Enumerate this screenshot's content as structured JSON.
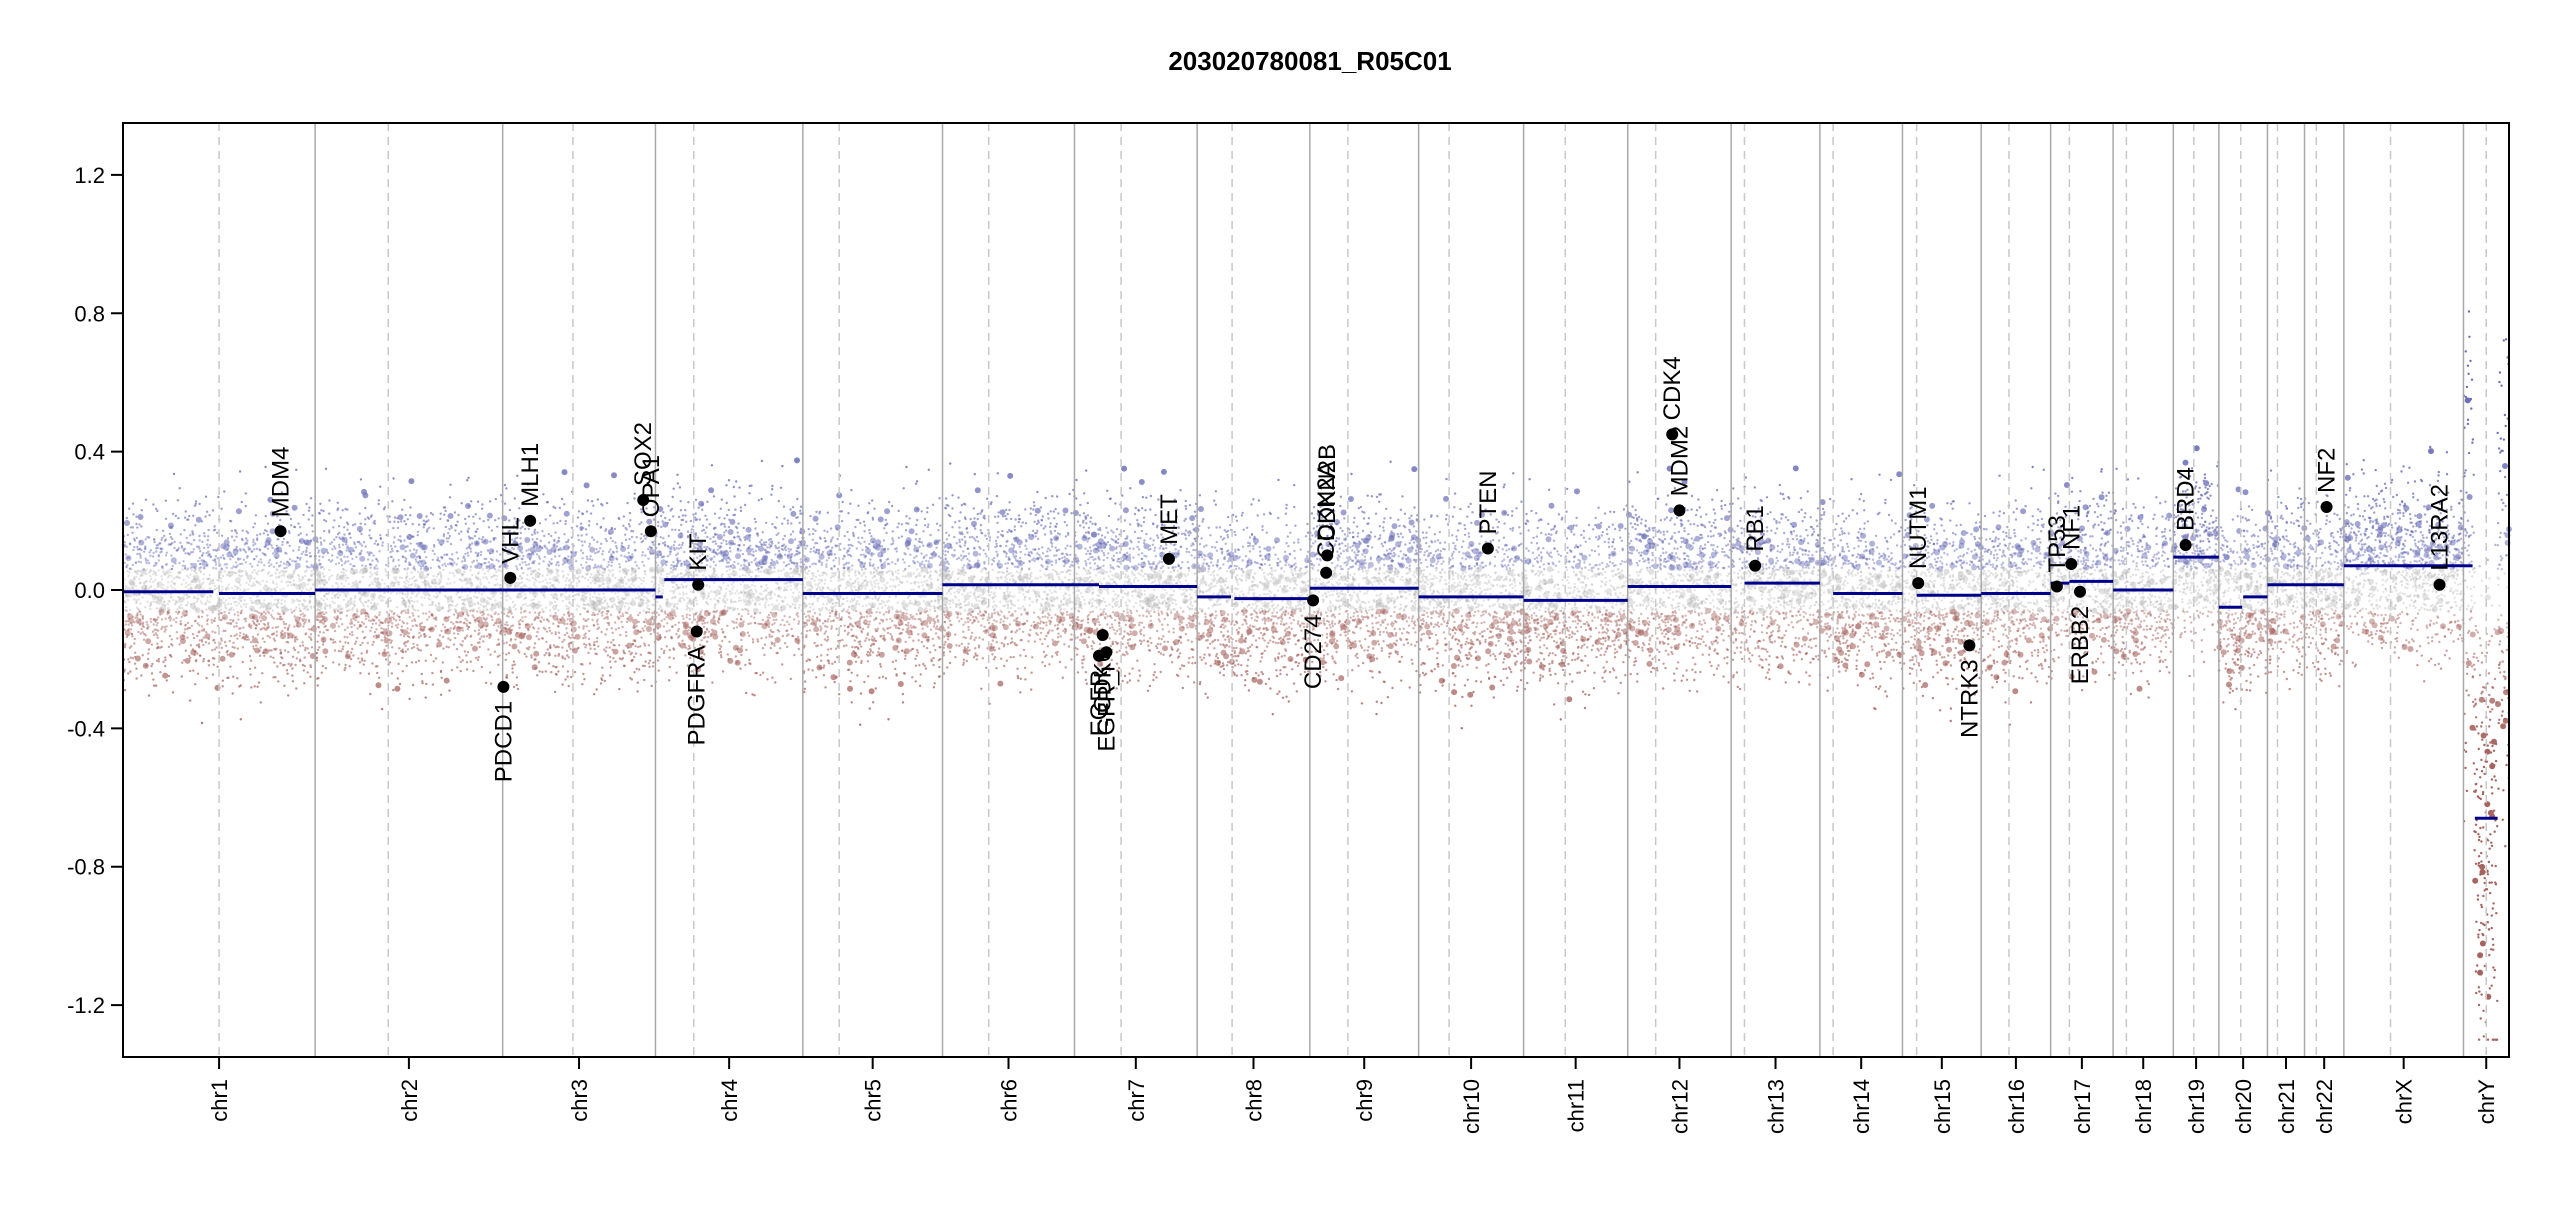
{
  "chart_data": {
    "type": "scatter",
    "title": "203020780081_R05C01",
    "xlabel": "",
    "ylabel": "",
    "ylim": [
      -1.35,
      1.35
    ],
    "y_ticks": [
      -1.2,
      -0.8,
      -0.4,
      0.0,
      0.4,
      0.8,
      1.2
    ],
    "y_tick_labels": [
      "-1.2",
      "-0.8",
      "-0.4",
      "0.0",
      "0.4",
      "0.8",
      "1.2"
    ],
    "colors": {
      "gain": "#6b6fb7",
      "loss": "#a6645f",
      "neutral": "#b5b5b5",
      "segment": "#00008b",
      "gene": "#000000",
      "border": "#a9a9a9",
      "centromere": "#c8c8c8"
    },
    "chromosomes": [
      {
        "name": "chr1",
        "length": 249,
        "centromere": 0.5,
        "segments": [
          [
            0,
            0.47,
            -0.005
          ],
          [
            0.5,
            1.0,
            -0.01
          ]
        ]
      },
      {
        "name": "chr2",
        "length": 243,
        "centromere": 0.39,
        "segments": [
          [
            0,
            1.0,
            0.0
          ]
        ]
      },
      {
        "name": "chr3",
        "length": 198,
        "centromere": 0.46,
        "segments": [
          [
            0,
            1.0,
            0.0
          ]
        ]
      },
      {
        "name": "chr4",
        "length": 191,
        "centromere": 0.26,
        "segments": [
          [
            0,
            0.05,
            -0.02
          ],
          [
            0.06,
            1.0,
            0.03
          ]
        ]
      },
      {
        "name": "chr5",
        "length": 181,
        "centromere": 0.26,
        "segments": [
          [
            0,
            1.0,
            -0.01
          ]
        ]
      },
      {
        "name": "chr6",
        "length": 171,
        "centromere": 0.35,
        "segments": [
          [
            0,
            1.0,
            0.015
          ]
        ]
      },
      {
        "name": "chr7",
        "length": 159,
        "centromere": 0.38,
        "segments": [
          [
            0,
            0.2,
            0.015
          ],
          [
            0.2,
            1.0,
            0.01
          ]
        ]
      },
      {
        "name": "chr8",
        "length": 146,
        "centromere": 0.31,
        "segments": [
          [
            0,
            0.3,
            -0.02
          ],
          [
            0.33,
            1.0,
            -0.025
          ]
        ]
      },
      {
        "name": "chr9",
        "length": 141,
        "centromere": 0.35,
        "segments": [
          [
            0,
            1.0,
            0.005
          ]
        ]
      },
      {
        "name": "chr10",
        "length": 136,
        "centromere": 0.29,
        "segments": [
          [
            0,
            1.0,
            -0.02
          ]
        ]
      },
      {
        "name": "chr11",
        "length": 135,
        "centromere": 0.4,
        "segments": [
          [
            0,
            1.0,
            -0.03
          ]
        ]
      },
      {
        "name": "chr12",
        "length": 134,
        "centromere": 0.27,
        "segments": [
          [
            0,
            1.0,
            0.01
          ]
        ]
      },
      {
        "name": "chr13",
        "length": 115,
        "centromere": 0.15,
        "segments": [
          [
            0.15,
            1.0,
            0.02
          ]
        ]
      },
      {
        "name": "chr14",
        "length": 107,
        "centromere": 0.16,
        "segments": [
          [
            0.16,
            1.0,
            -0.01
          ]
        ]
      },
      {
        "name": "chr15",
        "length": 102,
        "centromere": 0.18,
        "segments": [
          [
            0.18,
            1.0,
            -0.015
          ]
        ]
      },
      {
        "name": "chr16",
        "length": 90,
        "centromere": 0.4,
        "segments": [
          [
            0,
            1.0,
            -0.01
          ]
        ]
      },
      {
        "name": "chr17",
        "length": 81,
        "centromere": 0.3,
        "segments": [
          [
            0,
            0.3,
            0.02
          ],
          [
            0.3,
            1.0,
            0.025
          ]
        ]
      },
      {
        "name": "chr18",
        "length": 78,
        "centromere": 0.22,
        "segments": [
          [
            0,
            1.0,
            0.0
          ]
        ]
      },
      {
        "name": "chr19",
        "length": 59,
        "centromere": 0.45,
        "segments": [
          [
            0,
            1.0,
            0.095
          ]
        ]
      },
      {
        "name": "chr20",
        "length": 63,
        "centromere": 0.45,
        "segments": [
          [
            0,
            0.48,
            -0.05
          ],
          [
            0.5,
            1.0,
            -0.02
          ]
        ]
      },
      {
        "name": "chr21",
        "length": 48,
        "centromere": 0.27,
        "segments": [
          [
            0,
            1.0,
            0.015
          ]
        ]
      },
      {
        "name": "chr22",
        "length": 51,
        "centromere": 0.3,
        "segments": [
          [
            0,
            1.0,
            0.015
          ]
        ]
      },
      {
        "name": "chrX",
        "length": 155,
        "centromere": 0.39,
        "segments": [
          [
            0,
            1.0,
            0.07
          ]
        ]
      },
      {
        "name": "chrY",
        "length": 59,
        "centromere": 0.5,
        "segments": [
          [
            0,
            0.2,
            0.07
          ],
          [
            0.25,
            0.75,
            -0.66
          ]
        ]
      }
    ],
    "genes": [
      {
        "name": "MDM4",
        "chr": "chr1",
        "pos": 0.82,
        "value": 0.17
      },
      {
        "name": "VHL",
        "chr": "chr3",
        "pos": 0.05,
        "value": 0.035
      },
      {
        "name": "MLH1",
        "chr": "chr3",
        "pos": 0.18,
        "value": 0.2
      },
      {
        "name": "PDCD1",
        "chr": "chr3",
        "pos": 0.005,
        "value": -0.28
      },
      {
        "name": "SOX2",
        "chr": "chr3",
        "pos": 0.92,
        "value": 0.26
      },
      {
        "name": "OPA1",
        "chr": "chr3",
        "pos": 0.97,
        "value": 0.17
      },
      {
        "name": "KIT",
        "chr": "chr4",
        "pos": 0.29,
        "value": 0.015
      },
      {
        "name": "PDGFRA",
        "chr": "chr4",
        "pos": 0.28,
        "value": -0.12
      },
      {
        "name": "EGFR",
        "chr": "chr7",
        "pos": 0.2,
        "value": -0.19
      },
      {
        "name": "CDK6",
        "chr": "chr7",
        "pos": 0.23,
        "value": -0.13
      },
      {
        "name": "EGFR_i",
        "chr": "chr7",
        "pos": 0.26,
        "value": -0.18
      },
      {
        "name": "MET",
        "chr": "chr7",
        "pos": 0.77,
        "value": 0.09
      },
      {
        "name": "CD274",
        "chr": "chr9",
        "pos": 0.03,
        "value": -0.03
      },
      {
        "name": "CDKN2B",
        "chr": "chr9",
        "pos": 0.16,
        "value": 0.1
      },
      {
        "name": "CDKN2A",
        "chr": "chr9",
        "pos": 0.15,
        "value": 0.05
      },
      {
        "name": "PTEN",
        "chr": "chr10",
        "pos": 0.66,
        "value": 0.12
      },
      {
        "name": "MDM2",
        "chr": "chr12",
        "pos": 0.5,
        "value": 0.23
      },
      {
        "name": "CDK4",
        "chr": "chr12",
        "pos": 0.43,
        "value": 0.45
      },
      {
        "name": "RB1",
        "chr": "chr13",
        "pos": 0.27,
        "value": 0.07
      },
      {
        "name": "NUTM1",
        "chr": "chr15",
        "pos": 0.2,
        "value": 0.02
      },
      {
        "name": "NTRK3",
        "chr": "chr15",
        "pos": 0.85,
        "value": -0.16
      },
      {
        "name": "TP53",
        "chr": "chr17",
        "pos": 0.1,
        "value": 0.01
      },
      {
        "name": "NF1",
        "chr": "chr17",
        "pos": 0.33,
        "value": 0.075
      },
      {
        "name": "ERBB2",
        "chr": "chr17",
        "pos": 0.47,
        "value": -0.005
      },
      {
        "name": "BRD4",
        "chr": "chr19",
        "pos": 0.27,
        "value": 0.13
      },
      {
        "name": "NF2",
        "chr": "chr22",
        "pos": 0.56,
        "value": 0.24
      },
      {
        "name": "L13RA2",
        "chr": "chrX",
        "pos": 0.8,
        "value": 0.015
      }
    ],
    "scatter_note": "Dense per-probe scatter estimated; gain probes shown above 0, loss probes below 0"
  }
}
